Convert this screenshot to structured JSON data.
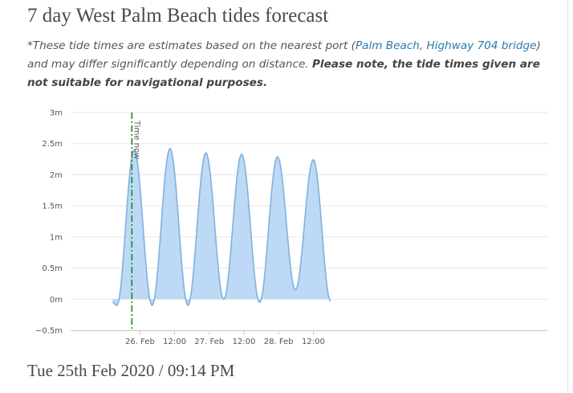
{
  "header": {
    "title": "7 day West Palm Beach tides forecast"
  },
  "disclaimer": {
    "part1": "*These tide times are estimates based on the nearest port (",
    "port_link": "Palm Beach, Highway 704 bridge",
    "part2": ") and may differ significantly depending on distance. ",
    "warning": "Please note, the tide times given are not suitable for navigational purposes."
  },
  "colors": {
    "area_fill": "#bdd9f5",
    "line": "#7fb1e0",
    "now_line": "#1a8a1a",
    "grid": "#e6e6e6",
    "link": "#2a7ab0"
  },
  "chart_data": {
    "type": "area",
    "ylabel": "",
    "xlabel": "",
    "y_ticks": [
      "3m",
      "2.5m",
      "2m",
      "1.5m",
      "1m",
      "0.5m",
      "0m",
      "−0.5m"
    ],
    "y_tick_values": [
      3,
      2.5,
      2,
      1.5,
      1,
      0.5,
      0,
      -0.5
    ],
    "ylim": [
      -0.5,
      3
    ],
    "x_unit": "hours since 25 Feb 2020 00:00",
    "xlim": [
      0,
      165
    ],
    "x_ticks": [
      "26. Feb",
      "12:00",
      "27. Feb",
      "12:00",
      "28. Feb",
      "12:00"
    ],
    "x_tick_values": [
      24,
      36,
      48,
      60,
      72,
      84
    ],
    "tide_extremes": [
      {
        "t": 14.5,
        "h": -0.05
      },
      {
        "t": 16.0,
        "h": -0.1
      },
      {
        "t": 22.0,
        "h": 2.4
      },
      {
        "t": 28.2,
        "h": -0.1
      },
      {
        "t": 34.4,
        "h": 2.42
      },
      {
        "t": 40.6,
        "h": -0.1
      },
      {
        "t": 46.8,
        "h": 2.35
      },
      {
        "t": 53.0,
        "h": 0.0
      },
      {
        "t": 59.2,
        "h": 2.33
      },
      {
        "t": 65.4,
        "h": -0.05
      },
      {
        "t": 71.6,
        "h": 2.29
      },
      {
        "t": 77.8,
        "h": 0.15
      },
      {
        "t": 84.0,
        "h": 2.24
      },
      {
        "t": 90.0,
        "h": -0.03
      }
    ],
    "now_marker": {
      "label": "Time now",
      "t": 21.2
    },
    "grid": true,
    "legend": "none"
  },
  "footer": {
    "datetime": "Tue 25th Feb 2020 / 09:14 PM"
  }
}
